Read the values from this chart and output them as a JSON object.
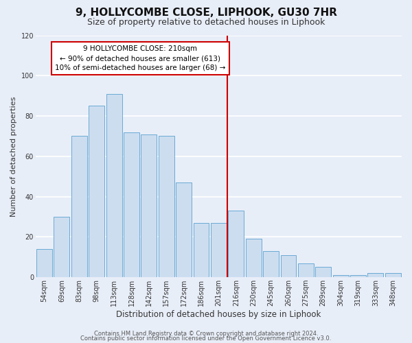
{
  "title": "9, HOLLYCOMBE CLOSE, LIPHOOK, GU30 7HR",
  "subtitle": "Size of property relative to detached houses in Liphook",
  "xlabel": "Distribution of detached houses by size in Liphook",
  "ylabel": "Number of detached properties",
  "bar_labels": [
    "54sqm",
    "69sqm",
    "83sqm",
    "98sqm",
    "113sqm",
    "128sqm",
    "142sqm",
    "157sqm",
    "172sqm",
    "186sqm",
    "201sqm",
    "216sqm",
    "230sqm",
    "245sqm",
    "260sqm",
    "275sqm",
    "289sqm",
    "304sqm",
    "319sqm",
    "333sqm",
    "348sqm"
  ],
  "bar_heights": [
    14,
    30,
    70,
    85,
    91,
    72,
    71,
    70,
    47,
    27,
    27,
    33,
    19,
    13,
    11,
    7,
    5,
    1,
    1,
    2,
    2
  ],
  "bar_color": "#ccddf0",
  "bar_edge_color": "#6aaad4",
  "vline_color": "#cc0000",
  "annotation_text": "9 HOLLYCOMBE CLOSE: 210sqm\n← 90% of detached houses are smaller (613)\n10% of semi-detached houses are larger (68) →",
  "annotation_box_color": "#ffffff",
  "annotation_box_edge": "#cc0000",
  "ylim": [
    0,
    120
  ],
  "yticks": [
    0,
    20,
    40,
    60,
    80,
    100,
    120
  ],
  "footer1": "Contains HM Land Registry data © Crown copyright and database right 2024.",
  "footer2": "Contains public sector information licensed under the Open Government Licence v3.0.",
  "background_color": "#e8eef8",
  "plot_background": "#e8eef8",
  "grid_color": "#ffffff",
  "title_fontsize": 11,
  "subtitle_fontsize": 9,
  "xlabel_fontsize": 8.5,
  "ylabel_fontsize": 8,
  "tick_fontsize": 7,
  "footer_fontsize": 6,
  "vline_bin_index": 11
}
